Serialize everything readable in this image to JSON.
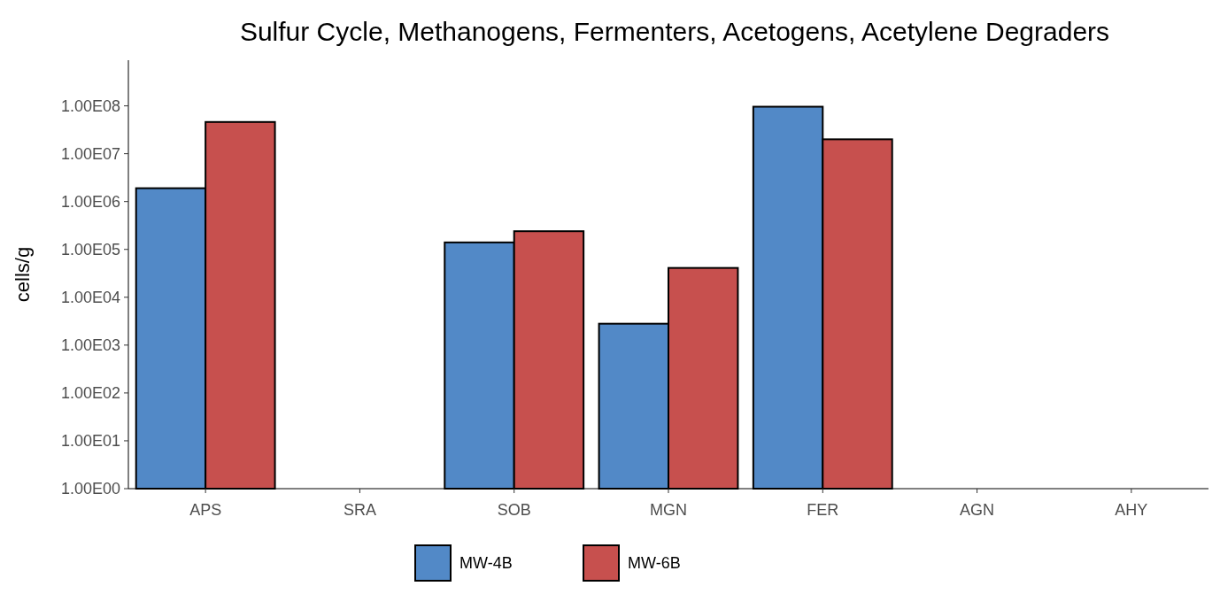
{
  "chart_data": {
    "type": "bar",
    "title": "Sulfur Cycle, Methanogens, Fermenters, Acetogens, Acetylene Degraders",
    "ylabel": "cells/g",
    "categories": [
      "APS",
      "SRA",
      "SOB",
      "MGN",
      "FER",
      "AGN",
      "AHY"
    ],
    "series": [
      {
        "name": "MW-4B",
        "color": "#5289c7",
        "values": [
          1900000,
          1,
          140000,
          2800,
          96000000,
          1,
          1
        ]
      },
      {
        "name": "MW-6B",
        "color": "#c7504e",
        "values": [
          46000000,
          1,
          240000,
          41000,
          20000000,
          1,
          1
        ]
      }
    ],
    "log": "y",
    "ylim": [
      1,
      900000000
    ],
    "yticks": [
      {
        "value": 1,
        "label": "1.00E00"
      },
      {
        "value": 10,
        "label": "1.00E01"
      },
      {
        "value": 100,
        "label": "1.00E02"
      },
      {
        "value": 1000,
        "label": "1.00E03"
      },
      {
        "value": 10000,
        "label": "1.00E04"
      },
      {
        "value": 100000,
        "label": "1.00E05"
      },
      {
        "value": 1000000,
        "label": "1.00E06"
      },
      {
        "value": 10000000,
        "label": "1.00E07"
      },
      {
        "value": 100000000,
        "label": "1.00E08"
      }
    ],
    "legend": "bottom"
  }
}
